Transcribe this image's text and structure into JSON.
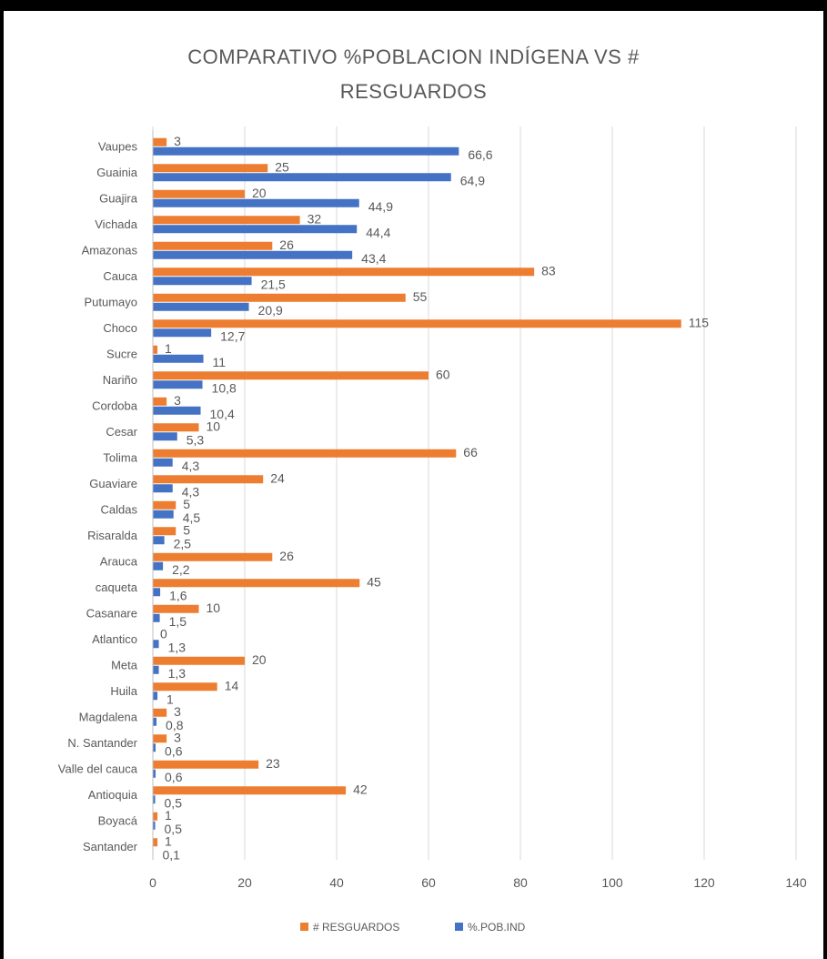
{
  "chart_data": {
    "type": "bar",
    "orientation": "horizontal",
    "title_line1": "COMPARATIVO %POBLACION INDÍGENA VS #",
    "title_line2": "RESGUARDOS",
    "categories": [
      "Vaupes",
      "Guainia",
      "Guajira",
      "Vichada",
      "Amazonas",
      "Cauca",
      "Putumayo",
      "Choco",
      "Sucre",
      "Nariño",
      "Cordoba",
      "Cesar",
      "Tolima",
      "Guaviare",
      "Caldas",
      "Risaralda",
      "Arauca",
      "caqueta",
      "Casanare",
      "Atlantico",
      "Meta",
      "Huila",
      "Magdalena",
      "N. Santander",
      "Valle del cauca",
      "Antioquia",
      "Boyacá",
      "Santander"
    ],
    "series": [
      {
        "name": "# RESGUARDOS",
        "color": "#ED7D31",
        "values": [
          3,
          25,
          20,
          32,
          26,
          83,
          55,
          115,
          1,
          60,
          3,
          10,
          66,
          24,
          5,
          5,
          26,
          45,
          10,
          0,
          20,
          14,
          3,
          3,
          23,
          42,
          1,
          1
        ],
        "labels": [
          "3",
          "25",
          "20",
          "32",
          "26",
          "83",
          "55",
          "115",
          "1",
          "60",
          "3",
          "10",
          "66",
          "24",
          "5",
          "5",
          "26",
          "45",
          "10",
          "0",
          "20",
          "14",
          "3",
          "3",
          "23",
          "42",
          "1",
          "1"
        ]
      },
      {
        "name": "%.POB.IND",
        "color": "#4472C4",
        "values": [
          66.6,
          64.9,
          44.9,
          44.4,
          43.4,
          21.5,
          20.9,
          12.7,
          11,
          10.8,
          10.4,
          5.3,
          4.3,
          4.3,
          4.5,
          2.5,
          2.2,
          1.6,
          1.5,
          1.3,
          1.3,
          1,
          0.8,
          0.6,
          0.6,
          0.5,
          0.5,
          0.1
        ],
        "labels": [
          "66,6",
          "64,9",
          "44,9",
          "44,4",
          "43,4",
          "21,5",
          "20,9",
          "12,7",
          "11",
          "10,8",
          "10,4",
          "5,3",
          "4,3",
          "4,3",
          "4,5",
          "2,5",
          "2,2",
          "1,6",
          "1,5",
          "1,3",
          "1,3",
          "1",
          "0,8",
          "0,6",
          "0,6",
          "0,5",
          "0,5",
          "0,1"
        ]
      }
    ],
    "xlim": [
      0,
      140
    ],
    "xticks": [
      "0",
      "20",
      "40",
      "60",
      "80",
      "100",
      "120",
      "140"
    ],
    "grid": true,
    "legend": "bottom"
  }
}
